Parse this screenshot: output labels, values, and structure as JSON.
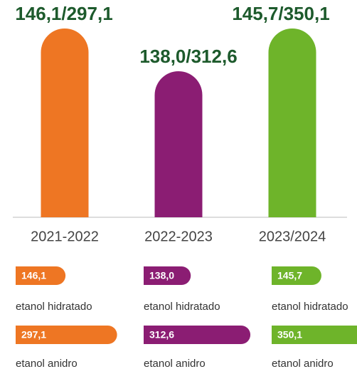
{
  "chart_data": {
    "type": "bar",
    "categories": [
      "2021-2022",
      "2022-2023",
      "2023/2024"
    ],
    "bar_labels": [
      "146,1/297,1",
      "138,0/312,6",
      "145,7/350,1"
    ],
    "colors": [
      "#ee7623",
      "#8b1d73",
      "#6eb42a"
    ],
    "series": [
      {
        "name": "etanol hidratado",
        "values": [
          146.1,
          138.0,
          145.7
        ],
        "value_labels": [
          "146,1",
          "138,0",
          "145,7"
        ]
      },
      {
        "name": "etanol anidro",
        "values": [
          297.1,
          312.6,
          350.1
        ],
        "value_labels": [
          "297,1",
          "312,6",
          "350,1"
        ]
      }
    ]
  }
}
